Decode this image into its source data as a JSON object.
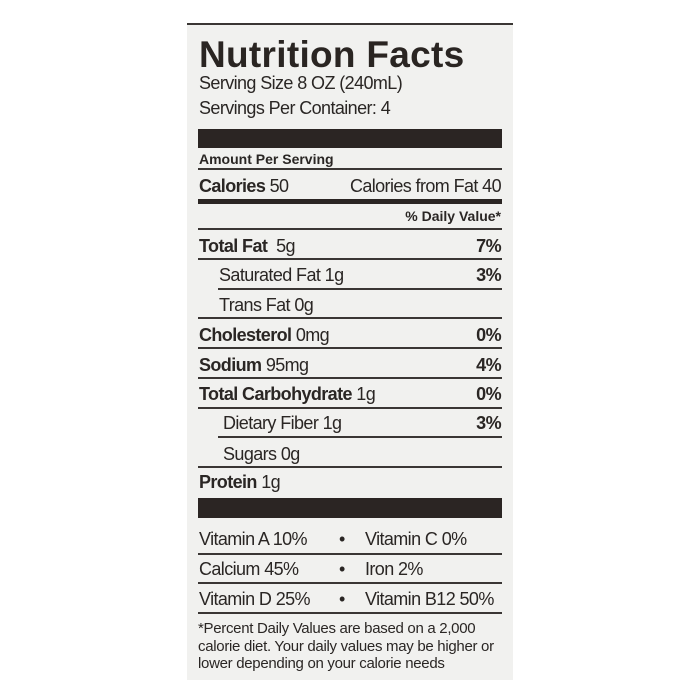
{
  "title": "Nutrition Facts",
  "serving_size": "Serving Size 8 OZ (240mL)",
  "servings_per_container": "Servings Per Container: 4",
  "amount_per_serving": "Amount Per Serving",
  "calories": {
    "label": "Calories",
    "value": "50",
    "from_fat": "Calories from Fat 40"
  },
  "daily_value_header": "% Daily Value*",
  "nutrients": [
    {
      "label": "Total Fat",
      "amount": "5g",
      "dv": "7%"
    },
    {
      "label": "Saturated Fat",
      "amount": "1g",
      "dv": "3%"
    },
    {
      "label": "Trans Fat",
      "amount": "0g",
      "dv": ""
    },
    {
      "label": "Cholesterol",
      "amount": "0mg",
      "dv": "0%"
    },
    {
      "label": "Sodium",
      "amount": "95mg",
      "dv": "4%"
    },
    {
      "label": "Total Carbohydrate",
      "amount": "1g",
      "dv": "0%"
    },
    {
      "label": "Dietary Fiber",
      "amount": "1g",
      "dv": "3%"
    },
    {
      "label": "Sugars",
      "amount": "0g",
      "dv": ""
    },
    {
      "label": "Protein",
      "amount": "1g",
      "dv": ""
    }
  ],
  "vitamins": [
    {
      "left": "Vitamin A 10%",
      "right": "Vitamin C 0%"
    },
    {
      "left": "Calcium 45%",
      "right": "Iron 2%"
    },
    {
      "left": "Vitamin D 25%",
      "right": "Vitamin B12 50%"
    }
  ],
  "bullet": "•",
  "footnote": "*Percent Daily Values are based on a 2,000 calorie diet. Your daily values may be higher or lower depending on your calorie needs"
}
